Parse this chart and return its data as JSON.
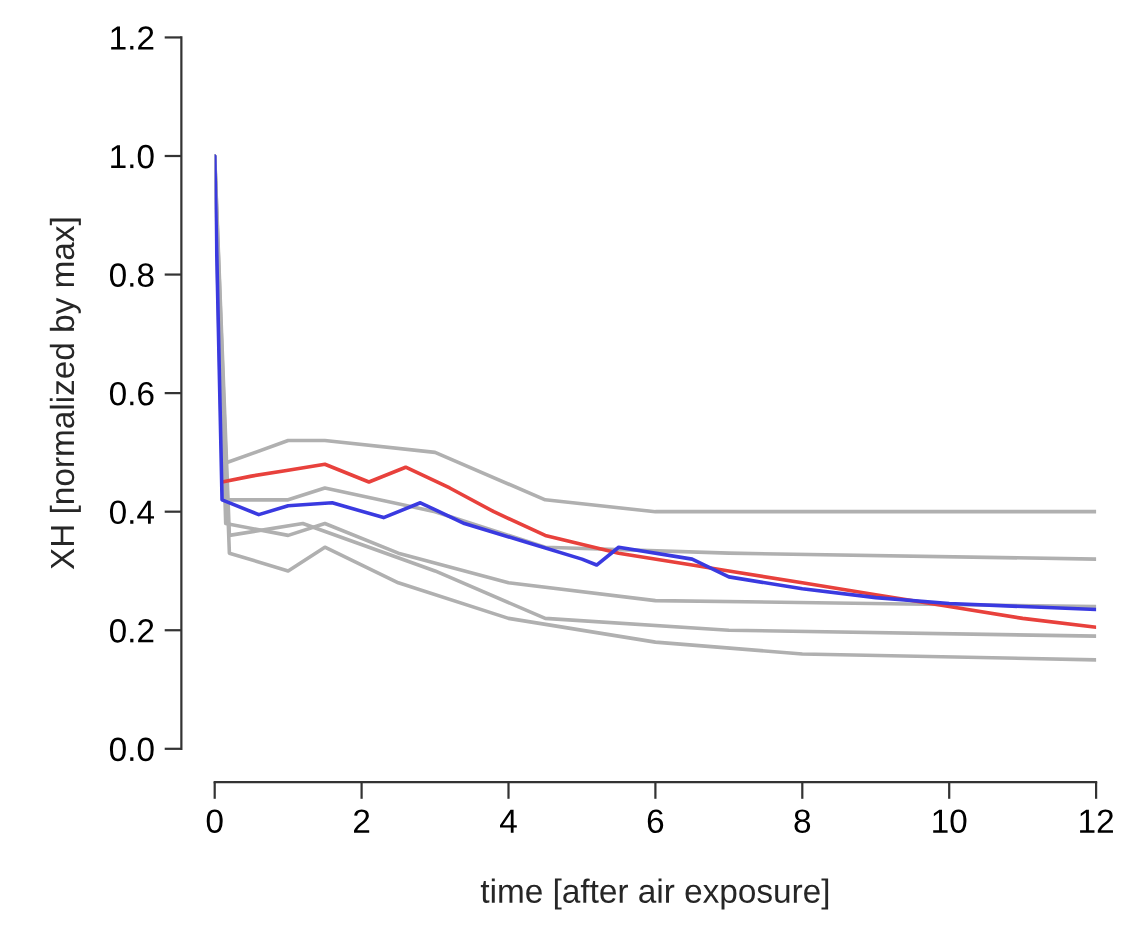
{
  "chart_data": {
    "type": "line",
    "xlabel": "time [after air exposure]",
    "ylabel": "XH [normalized by max]",
    "xlim": [
      0,
      12
    ],
    "ylim": [
      0,
      1.2
    ],
    "xticks": [
      0,
      2,
      4,
      6,
      8,
      10,
      12
    ],
    "yticks": [
      {
        "value": 0,
        "label": "0.0"
      },
      {
        "value": 0.2,
        "label": "0.2"
      },
      {
        "value": 0.4,
        "label": "0.4"
      },
      {
        "value": 0.6,
        "label": "0.6"
      },
      {
        "value": 0.8,
        "label": "0.8"
      },
      {
        "value": 1.0,
        "label": "1.0"
      },
      {
        "value": 1.2,
        "label": "1.2"
      }
    ],
    "grid": false,
    "legend": false,
    "series": [
      {
        "color": "#b0b0b0",
        "x": [
          0,
          0.1,
          1,
          1.5,
          3,
          4.5,
          6,
          12
        ],
        "values": [
          1.0,
          0.48,
          0.52,
          0.52,
          0.5,
          0.42,
          0.4,
          0.4
        ]
      },
      {
        "color": "#b0b0b0",
        "x": [
          0,
          0.15,
          1,
          1.5,
          3,
          4.5,
          7,
          12
        ],
        "values": [
          1.0,
          0.42,
          0.42,
          0.44,
          0.4,
          0.34,
          0.33,
          0.32
        ]
      },
      {
        "color": "#b0b0b0",
        "x": [
          0,
          0.15,
          1,
          1.5,
          2.5,
          4,
          6,
          12
        ],
        "values": [
          1.0,
          0.38,
          0.36,
          0.38,
          0.33,
          0.28,
          0.25,
          0.24
        ]
      },
      {
        "color": "#b0b0b0",
        "x": [
          0,
          0.2,
          1.2,
          3,
          4.5,
          7,
          12
        ],
        "values": [
          1.0,
          0.36,
          0.38,
          0.3,
          0.22,
          0.2,
          0.19
        ]
      },
      {
        "color": "#b0b0b0",
        "x": [
          0,
          0.2,
          1,
          1.5,
          2.5,
          4,
          6,
          8,
          12
        ],
        "values": [
          1.0,
          0.33,
          0.3,
          0.34,
          0.28,
          0.22,
          0.18,
          0.16,
          0.15
        ]
      },
      {
        "color": "#e8413c",
        "x": [
          0.1,
          0.5,
          1,
          1.5,
          2.1,
          2.6,
          3.2,
          3.8,
          4.5,
          5.5,
          6.5,
          7,
          8,
          9,
          10,
          11,
          12
        ],
        "values": [
          0.45,
          0.46,
          0.47,
          0.48,
          0.45,
          0.475,
          0.44,
          0.4,
          0.36,
          0.33,
          0.31,
          0.3,
          0.28,
          0.26,
          0.24,
          0.22,
          0.205
        ]
      },
      {
        "color": "#3a3ae0",
        "x": [
          0,
          0.1,
          0.6,
          1,
          1.6,
          2.3,
          2.8,
          3.4,
          4.2,
          5,
          5.2,
          5.5,
          6.5,
          7,
          8,
          9,
          10,
          11,
          12
        ],
        "values": [
          1.0,
          0.42,
          0.395,
          0.41,
          0.415,
          0.39,
          0.415,
          0.38,
          0.35,
          0.32,
          0.31,
          0.34,
          0.32,
          0.29,
          0.27,
          0.255,
          0.245,
          0.24,
          0.235
        ]
      }
    ]
  }
}
